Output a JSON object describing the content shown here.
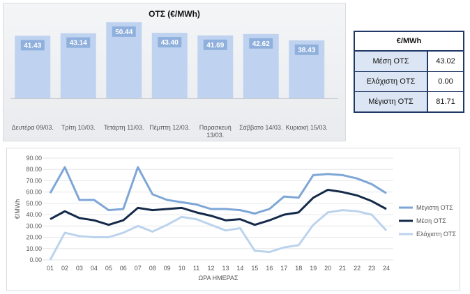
{
  "chart_data": [
    {
      "type": "bar",
      "title": "ΟΤΣ (€/MWh)",
      "categories": [
        "Δευτέρα 09/03.",
        "Τρίτη 10/03.",
        "Τετάρτη 11/03.",
        "Πέμπτη 12/03.",
        "Παρασκευή 13/03.",
        "Σάββατο 14/03.",
        "Κυριακή 15/03."
      ],
      "values": [
        41.43,
        43.14,
        50.44,
        43.4,
        41.69,
        42.62,
        38.43
      ],
      "value_labels": [
        "41.43",
        "43.14",
        "50.44",
        "43.40",
        "41.69",
        "42.62",
        "38.43"
      ],
      "ylim": [
        0,
        55
      ],
      "bar_color": "#bfd3f0",
      "label_color": "#8fb0dc",
      "grid": false
    },
    {
      "type": "table",
      "header": "€/MWh",
      "rows": [
        {
          "label": "Μέση ΟΤΣ",
          "value": "43.02"
        },
        {
          "label": "Ελάχιστη ΟΤΣ",
          "value": "0.00"
        },
        {
          "label": "Μέγιστη ΟΤΣ",
          "value": "81.71"
        }
      ]
    },
    {
      "type": "line",
      "xlabel": "ΩΡΑ ΗΜΕΡΑΣ",
      "ylabel": "€/MWh",
      "x": [
        "01",
        "02",
        "03",
        "04",
        "05",
        "06",
        "07",
        "08",
        "09",
        "10",
        "11",
        "12",
        "13",
        "14",
        "15",
        "16",
        "17",
        "18",
        "19",
        "20",
        "21",
        "22",
        "23",
        "24"
      ],
      "ylim": [
        0,
        90
      ],
      "yticks": [
        "0.00",
        "10.00",
        "20.00",
        "30.00",
        "40.00",
        "50.00",
        "60.00",
        "70.00",
        "80.00",
        "90.00"
      ],
      "legend_position": "right",
      "grid": true,
      "series": [
        {
          "name": "Μέγιστη ΟΤΣ",
          "color": "#7ea6d6",
          "values": [
            59,
            82,
            53,
            53,
            44,
            45,
            82,
            58,
            53,
            51,
            49,
            45,
            45,
            44,
            41,
            45,
            56,
            55,
            75,
            76,
            75,
            72,
            67,
            59
          ]
        },
        {
          "name": "Μέση ΟΤΣ",
          "color": "#152a4a",
          "values": [
            36,
            43,
            37,
            35,
            31,
            35,
            46,
            44,
            45,
            46,
            42,
            39,
            35,
            36,
            31,
            35,
            40,
            42,
            55,
            62,
            60,
            57,
            52,
            45
          ]
        },
        {
          "name": "Ελάχιστη ΟΤΣ",
          "color": "#bcd3ee",
          "values": [
            0,
            24,
            21,
            20,
            20,
            24,
            30,
            25,
            31,
            38,
            36,
            31,
            26,
            28,
            8,
            7,
            11,
            13,
            31,
            42,
            44,
            43,
            40,
            26
          ]
        }
      ]
    }
  ]
}
